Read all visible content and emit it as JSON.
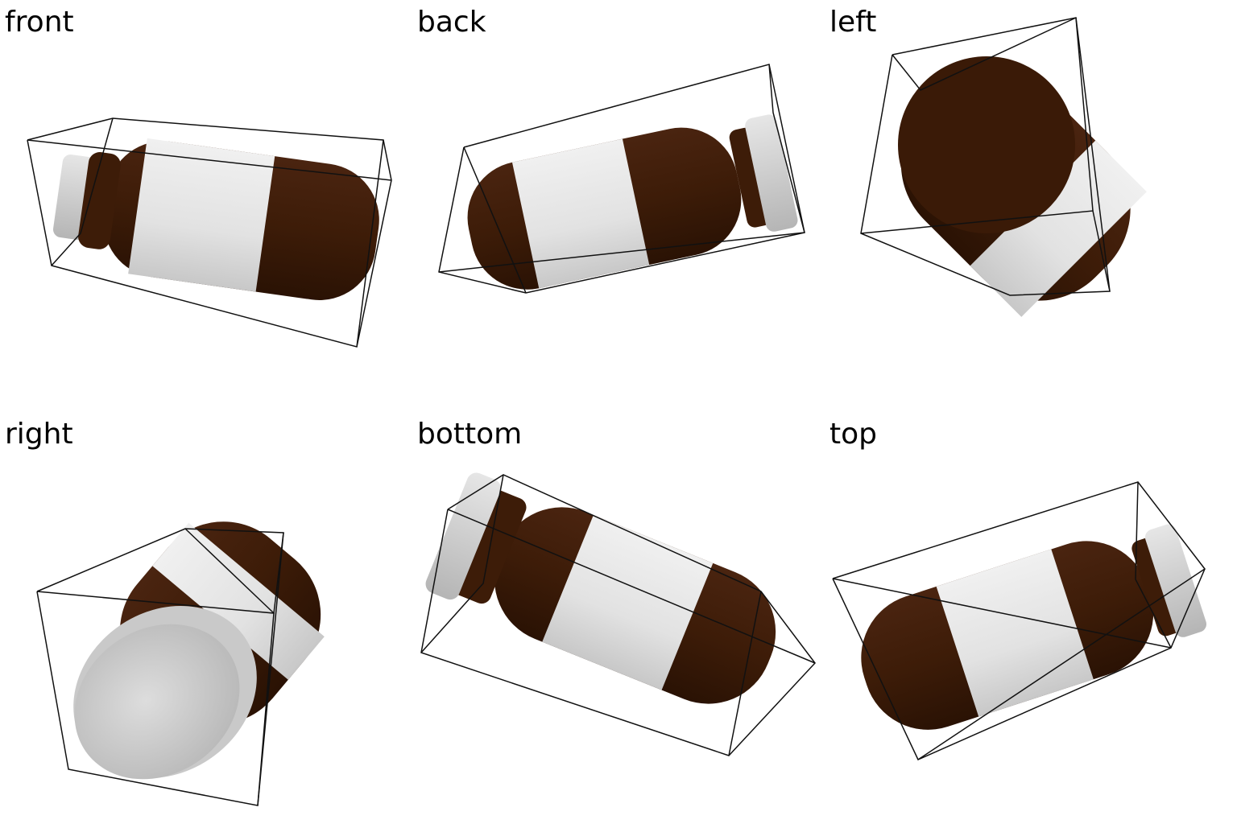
{
  "views": [
    {
      "key": "front",
      "label": "front"
    },
    {
      "key": "back",
      "label": "back"
    },
    {
      "key": "left",
      "label": "left"
    },
    {
      "key": "right",
      "label": "right"
    },
    {
      "key": "bottom",
      "label": "bottom"
    },
    {
      "key": "top",
      "label": "top"
    }
  ],
  "colors": {
    "bottle_brown": "#3d1c08",
    "bottle_brown_shade": "#2a1204",
    "label_white": "#e4e4e4",
    "cap_gray": "#d6d6d6",
    "cap_gray_shade": "#b9b9b9",
    "box_line": "#111111",
    "background": "#ffffff"
  },
  "icons": [
    "medicine-bottle-render",
    "bounding-box-wireframe"
  ]
}
